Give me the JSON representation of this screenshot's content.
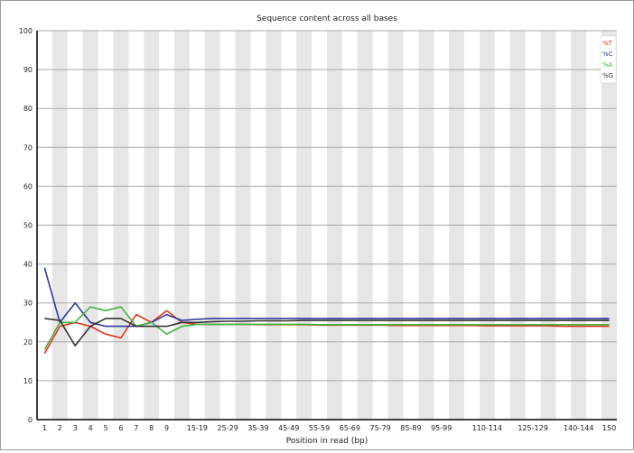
{
  "chart_data": {
    "type": "line",
    "title": "Sequence content across all bases",
    "xlabel": "Position in read (bp)",
    "ylabel": "",
    "ylim": [
      0,
      100
    ],
    "yticks": [
      0,
      10,
      20,
      30,
      40,
      50,
      60,
      70,
      80,
      90,
      100
    ],
    "categories": [
      "1",
      "2",
      "3",
      "4",
      "5",
      "6",
      "7",
      "8",
      "9",
      "10-14",
      "15-19",
      "20-24",
      "25-29",
      "30-34",
      "35-39",
      "40-44",
      "45-49",
      "50-54",
      "55-59",
      "60-64",
      "65-69",
      "70-74",
      "75-79",
      "80-84",
      "85-89",
      "90-94",
      "95-99",
      "100-104",
      "105-109",
      "110-114",
      "115-119",
      "120-124",
      "125-129",
      "130-134",
      "135-139",
      "140-144",
      "145-149",
      "150"
    ],
    "tick_labels": [
      "1",
      "2",
      "3",
      "4",
      "5",
      "6",
      "7",
      "8",
      "9",
      "15-19",
      "25-29",
      "35-39",
      "45-49",
      "55-59",
      "65-69",
      "75-79",
      "85-89",
      "95-99",
      "110-114",
      "125-129",
      "140-144",
      "150"
    ],
    "tick_indices": [
      0,
      1,
      2,
      3,
      4,
      5,
      6,
      7,
      8,
      10,
      12,
      14,
      16,
      18,
      20,
      22,
      24,
      26,
      29,
      32,
      35,
      37
    ],
    "grid": "horizontal",
    "legend_position": "top-right",
    "series": [
      {
        "name": "%T",
        "color": "#e8331c",
        "values": [
          17,
          24,
          25,
          24,
          22,
          21,
          27,
          25,
          28,
          25,
          24.5,
          24.5,
          24.5,
          24.5,
          24.4,
          24.4,
          24.4,
          24.4,
          24.3,
          24.3,
          24.3,
          24.3,
          24.3,
          24.2,
          24.2,
          24.2,
          24.2,
          24.2,
          24.2,
          24.1,
          24.1,
          24.1,
          24.1,
          24.1,
          24,
          24,
          24,
          24
        ]
      },
      {
        "name": "%C",
        "color": "#2d3a9e",
        "values": [
          39,
          25,
          30,
          25,
          24,
          24,
          24,
          25,
          27,
          25.5,
          25.8,
          26,
          26,
          26,
          26,
          26,
          26,
          26,
          26,
          26,
          26,
          26,
          26,
          26,
          26,
          26,
          26,
          26,
          26,
          26,
          26,
          26,
          26,
          26,
          26,
          26,
          26,
          26
        ]
      },
      {
        "name": "%A",
        "color": "#3fb43f",
        "values": [
          18,
          25,
          25,
          29,
          28,
          29,
          24,
          25,
          22,
          24,
          24.5,
          24.5,
          24.5,
          24.5,
          24.5,
          24.5,
          24.5,
          24.5,
          24.4,
          24.4,
          24.4,
          24.4,
          24.4,
          24.4,
          24.4,
          24.4,
          24.4,
          24.4,
          24.4,
          24.4,
          24.4,
          24.4,
          24.4,
          24.4,
          24.4,
          24.4,
          24.4,
          24.4
        ]
      },
      {
        "name": "%G",
        "color": "#333333",
        "values": [
          26,
          25.5,
          19,
          24,
          26,
          26,
          24,
          24,
          24,
          25,
          25,
          25.2,
          25.3,
          25.3,
          25.4,
          25.4,
          25.4,
          25.5,
          25.5,
          25.5,
          25.5,
          25.5,
          25.5,
          25.5,
          25.5,
          25.5,
          25.5,
          25.5,
          25.5,
          25.5,
          25.5,
          25.5,
          25.5,
          25.5,
          25.5,
          25.5,
          25.5,
          25.5
        ]
      }
    ]
  }
}
